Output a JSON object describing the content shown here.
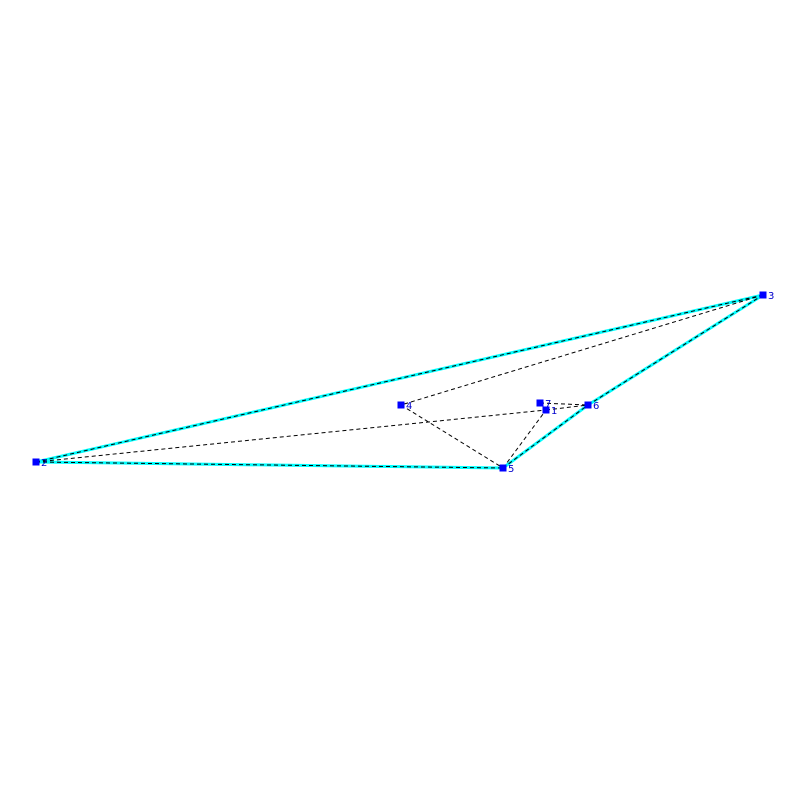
{
  "colors": {
    "hull": "#00ffff",
    "hull_inner": "#00a0a0",
    "dashed": "#000000",
    "vertex": "#0000ff",
    "label": "#0000cc",
    "background": "#ffffff"
  },
  "vertices": [
    {
      "id": "1",
      "label": "1"
    },
    {
      "id": "2",
      "label": "2"
    },
    {
      "id": "3",
      "label": "3"
    },
    {
      "id": "4",
      "label": "4"
    },
    {
      "id": "5",
      "label": "5"
    },
    {
      "id": "6",
      "label": "6"
    },
    {
      "id": "7",
      "label": "7"
    }
  ],
  "hull_edges": [
    [
      "2",
      "3"
    ],
    [
      "3",
      "6"
    ],
    [
      "6",
      "5"
    ],
    [
      "5",
      "2"
    ]
  ],
  "dashed_edges": [
    [
      "2",
      "3"
    ],
    [
      "2",
      "1"
    ],
    [
      "2",
      "5"
    ],
    [
      "3",
      "4"
    ],
    [
      "4",
      "5"
    ],
    [
      "5",
      "1"
    ],
    [
      "5",
      "6"
    ],
    [
      "1",
      "7"
    ],
    [
      "7",
      "6"
    ],
    [
      "1",
      "6"
    ],
    [
      "6",
      "3"
    ]
  ]
}
